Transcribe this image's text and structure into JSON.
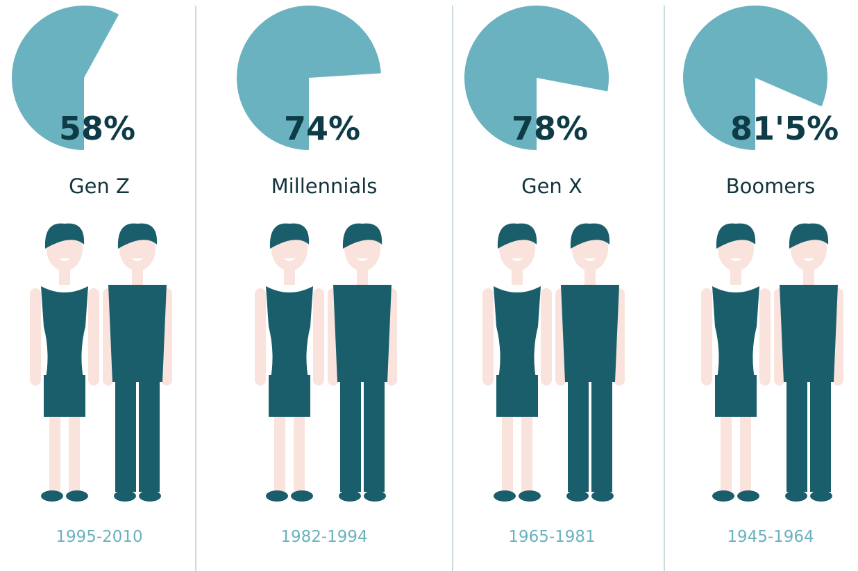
{
  "chart_data": [
    {
      "type": "pie",
      "title": "Gen Z",
      "subtitle": "1995-2010",
      "values": [
        58
      ],
      "value_labels": [
        "58%"
      ],
      "color": "#6ab2bf"
    },
    {
      "type": "pie",
      "title": "Millennials",
      "subtitle": "1982-1994",
      "values": [
        74
      ],
      "value_labels": [
        "74%"
      ],
      "color": "#6ab2bf"
    },
    {
      "type": "pie",
      "title": "Gen X",
      "subtitle": "1965-1981",
      "values": [
        78
      ],
      "value_labels": [
        "78%"
      ],
      "color": "#6ab2bf"
    },
    {
      "type": "pie",
      "title": "Boomers",
      "subtitle": "1945-1964",
      "values": [
        81.5
      ],
      "value_labels": [
        "81'5%"
      ],
      "color": "#6ab2bf"
    }
  ]
}
